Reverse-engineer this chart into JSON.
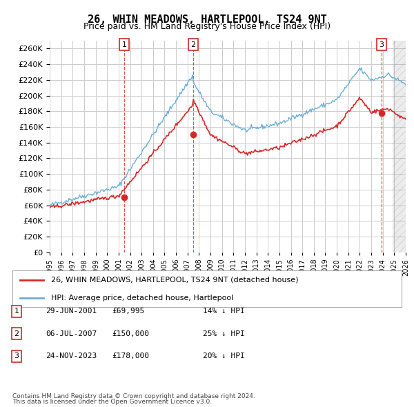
{
  "title": "26, WHIN MEADOWS, HARTLEPOOL, TS24 9NT",
  "subtitle": "Price paid vs. HM Land Registry's House Price Index (HPI)",
  "xlim": [
    1995,
    2026
  ],
  "ylim": [
    0,
    270000
  ],
  "yticks": [
    0,
    20000,
    40000,
    60000,
    80000,
    100000,
    120000,
    140000,
    160000,
    180000,
    200000,
    220000,
    240000,
    260000
  ],
  "xticks": [
    "1995",
    "1996",
    "1997",
    "1998",
    "1999",
    "2000",
    "2001",
    "2002",
    "2003",
    "2004",
    "2005",
    "2006",
    "2007",
    "2008",
    "2009",
    "2010",
    "2011",
    "2012",
    "2013",
    "2014",
    "2015",
    "2016",
    "2017",
    "2018",
    "2019",
    "2020",
    "2021",
    "2022",
    "2023",
    "2024",
    "2025",
    "2026"
  ],
  "transactions": [
    {
      "num": 1,
      "date": "29-JUN-2001",
      "price": 69995,
      "x": 2001.5,
      "label": "14% ↓ HPI"
    },
    {
      "num": 2,
      "date": "06-JUL-2007",
      "price": 150000,
      "x": 2007.5,
      "label": "25% ↓ HPI"
    },
    {
      "num": 3,
      "date": "24-NOV-2023",
      "price": 178000,
      "x": 2023.9,
      "label": "20% ↓ HPI"
    }
  ],
  "legend_line1": "26, WHIN MEADOWS, HARTLEPOOL, TS24 9NT (detached house)",
  "legend_line2": "HPI: Average price, detached house, Hartlepool",
  "footer1": "Contains HM Land Registry data © Crown copyright and database right 2024.",
  "footer2": "This data is licensed under the Open Government Licence v3.0.",
  "hpi_color": "#6baed6",
  "price_color": "#d62728",
  "grid_color": "#cccccc",
  "bg_color": "#ffffff",
  "plot_bg_color": "#ffffff"
}
